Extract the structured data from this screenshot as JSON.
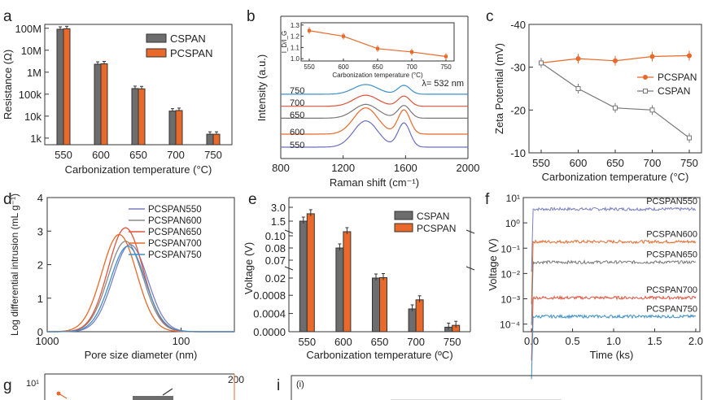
{
  "chart_data": [
    {
      "panel": "a",
      "type": "bar",
      "categories": [
        "550",
        "600",
        "650",
        "700",
        "750"
      ],
      "xlabel": "Carbonization temperature (°C)",
      "ylabel": "Resistance (Ω)",
      "yscale": "log",
      "ylim": [
        500,
        150000000
      ],
      "yticks": [
        "1k",
        "10k",
        "100k",
        "1M",
        "10M",
        "100M"
      ],
      "legend_position": "top-right",
      "series": [
        {
          "name": "CSPAN",
          "color": "#6d6d6d",
          "values": [
            90000000,
            2300000,
            180000,
            17000,
            1500
          ]
        },
        {
          "name": "PCSPAN",
          "color": "#e8692a",
          "values": [
            95000000,
            2400000,
            175000,
            18000,
            1500
          ]
        }
      ]
    },
    {
      "panel": "b",
      "type": "line",
      "xlabel": "Raman shift (cm⁻¹)",
      "ylabel": "Intensity (a.u.)",
      "xlim": [
        800,
        2000
      ],
      "xticks": [
        "800",
        "1200",
        "1600",
        "2000"
      ],
      "annotation": "λ= 532 nm",
      "series": [
        {
          "name": "750",
          "color": "#3f8fc7"
        },
        {
          "name": "700",
          "color": "#e0533b"
        },
        {
          "name": "650",
          "color": "#777777"
        },
        {
          "name": "600",
          "color": "#e8692a"
        },
        {
          "name": "550",
          "color": "#6a6fc0"
        }
      ],
      "inset": {
        "type": "line",
        "xlabel": "Carbonization temperature (°C)",
        "ylabel": "I_D/I_G",
        "x": [
          550,
          600,
          650,
          700,
          750
        ],
        "y": [
          1.25,
          1.2,
          1.09,
          1.06,
          1.02
        ],
        "xticks": [
          "550",
          "600",
          "650",
          "700",
          "750"
        ],
        "yticks": [
          "1.0",
          "1.1",
          "1.2",
          "1.3"
        ],
        "ylim": [
          0.98,
          1.32
        ]
      }
    },
    {
      "panel": "c",
      "type": "line",
      "xlabel": "Carbonization temperature (°C)",
      "ylabel": "Zeta Potential (mV)",
      "x": [
        550,
        600,
        650,
        700,
        750
      ],
      "xticks": [
        "550",
        "600",
        "650",
        "700",
        "750"
      ],
      "yticks": [
        "-10",
        "-20",
        "-30",
        "-40"
      ],
      "ylim": [
        -10,
        -40
      ],
      "legend_position": "right",
      "series": [
        {
          "name": "PCSPAN",
          "color": "#e8692a",
          "values": [
            -31,
            -32,
            -31.5,
            -32.5,
            -32.7
          ]
        },
        {
          "name": "CSPAN",
          "color": "#777777",
          "values": [
            -31,
            -25,
            -20.5,
            -20,
            -13.5
          ]
        }
      ]
    },
    {
      "panel": "d",
      "type": "line",
      "xlabel": "Pore size diameter (nm)",
      "ylabel": "Log differential intrusion (mL g⁻¹)",
      "xscale": "log-reversed",
      "xticks": [
        "1000",
        "100"
      ],
      "yticks": [
        "0",
        "1",
        "2",
        "3",
        "4"
      ],
      "ylim": [
        0,
        4
      ],
      "legend_position": "top-right",
      "series": [
        {
          "name": "PCSPAN550",
          "color": "#7a7fc4",
          "peak_nm": 240,
          "peak": 2.6
        },
        {
          "name": "PCSPAN600",
          "color": "#8a8a8a",
          "peak_nm": 260,
          "peak": 2.7
        },
        {
          "name": "PCSPAN650",
          "color": "#e0533b",
          "peak_nm": 260,
          "peak": 3.1
        },
        {
          "name": "PCSPAN700",
          "color": "#e8692a",
          "peak_nm": 290,
          "peak": 2.9
        },
        {
          "name": "PCSPAN750",
          "color": "#3f8fc7",
          "peak_nm": 250,
          "peak": 2.55
        }
      ]
    },
    {
      "panel": "e",
      "type": "bar",
      "categories": [
        "550",
        "600",
        "650",
        "700",
        "750"
      ],
      "xlabel": "Carbonization temperature (ºC)",
      "ylabel": "Voltage (V)",
      "axis_break": true,
      "yticks_top": [
        "0.07",
        "0.08",
        "0.10",
        "1.5",
        "3.0"
      ],
      "yticks_mid": [
        "0.02"
      ],
      "yticks_bottom": [
        "0.0000",
        "0.0004",
        "0.0008"
      ],
      "legend_position": "top-right",
      "series": [
        {
          "name": "CSPAN",
          "color": "#6d6d6d",
          "values": [
            1.5,
            0.085,
            0.02,
            0.0005,
            0.0001
          ]
        },
        {
          "name": "PCSPAN",
          "color": "#e8692a",
          "values": [
            2.3,
            0.105,
            0.0205,
            0.0007,
            0.00014
          ]
        }
      ]
    },
    {
      "panel": "f",
      "type": "line",
      "xlabel": "Time (ks)",
      "ylabel": "Voltage (V)",
      "yscale": "log",
      "xlim": [
        -0.1,
        2.05
      ],
      "xticks": [
        "0.0",
        "0.5",
        "1.0",
        "1.5",
        "2.0"
      ],
      "yticks": [
        "10⁻⁴",
        "10⁻³",
        "10⁻²",
        "10⁻¹",
        "10⁰",
        "10¹"
      ],
      "series": [
        {
          "name": "PCSPAN550",
          "color": "#7a7fc4",
          "values": [
            3.5
          ]
        },
        {
          "name": "PCSPAN600",
          "color": "#e8692a",
          "values": [
            0.18
          ]
        },
        {
          "name": "PCSPAN650",
          "color": "#777777",
          "values": [
            0.028
          ]
        },
        {
          "name": "PCSPAN700",
          "color": "#e0533b",
          "values": [
            0.0011
          ]
        },
        {
          "name": "PCSPAN750",
          "color": "#3f8fc7",
          "values": [
            0.0002
          ]
        }
      ]
    }
  ],
  "labels": {
    "a": "a",
    "b": "b",
    "c": "c",
    "d": "d",
    "e": "e",
    "f": "f",
    "g": "g",
    "i": "i",
    "i_sub": "(i)",
    "g_ytick_left": "10¹",
    "g_ytick_right": "200"
  }
}
